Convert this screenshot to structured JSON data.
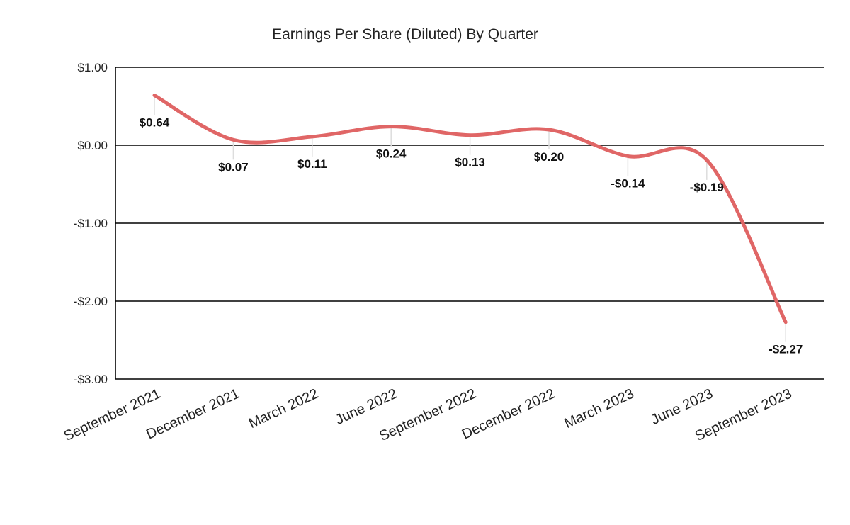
{
  "chart_data": {
    "type": "line",
    "title": "Earnings Per Share (Diluted) By Quarter",
    "xlabel": "",
    "ylabel": "",
    "categories": [
      "September 2021",
      "December 2021",
      "March 2022",
      "June 2022",
      "September 2022",
      "December 2022",
      "March 2023",
      "June 2023",
      "September 2023"
    ],
    "values": [
      0.64,
      0.07,
      0.11,
      0.24,
      0.13,
      0.2,
      -0.14,
      -0.19,
      -2.27
    ],
    "data_labels": [
      "$0.64",
      "$0.07",
      "$0.11",
      "$0.24",
      "$0.13",
      "$0.20",
      "-$0.14",
      "-$0.19",
      "-$2.27"
    ],
    "yticks": [
      1,
      0,
      -1,
      -2,
      -3
    ],
    "ytick_labels": [
      "$1.00",
      "$0.00",
      "-$1.00",
      "-$2.00",
      "-$3.00"
    ],
    "ylim": [
      -3,
      1
    ],
    "grid": true,
    "legend": "none",
    "line_color": "#e06666",
    "grid_color": "#000000"
  }
}
